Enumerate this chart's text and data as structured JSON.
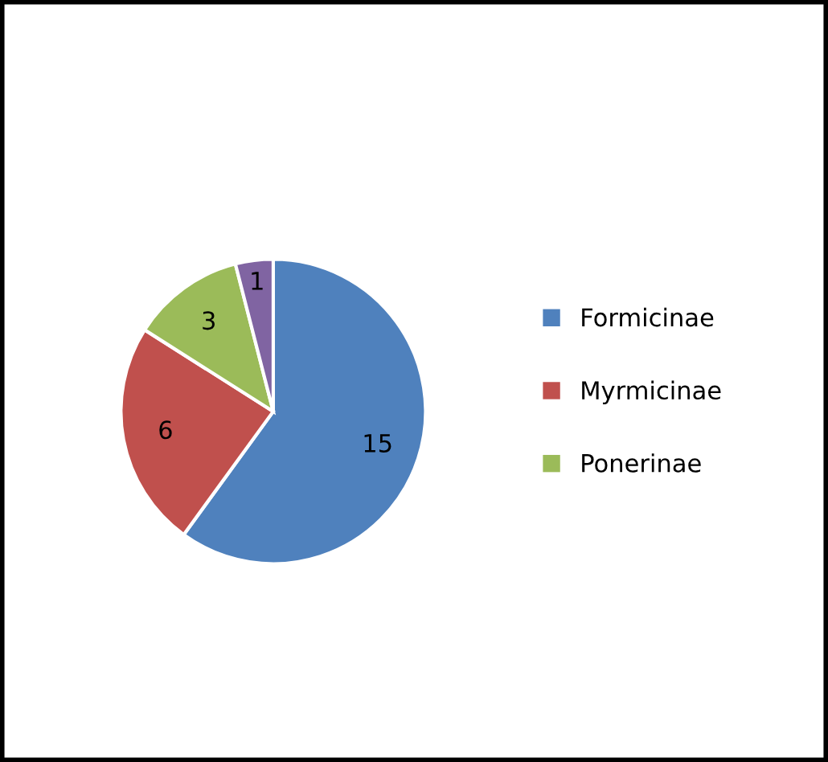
{
  "chart_data": {
    "type": "pie",
    "categories": [
      "Formicinae",
      "Myrmicinae",
      "Ponerinae",
      null
    ],
    "values": [
      15,
      6,
      3,
      1
    ],
    "colors": [
      "#4f81bd",
      "#c0504d",
      "#9bbb59",
      "#8064a2"
    ],
    "data_labels": true,
    "legend": "right"
  }
}
